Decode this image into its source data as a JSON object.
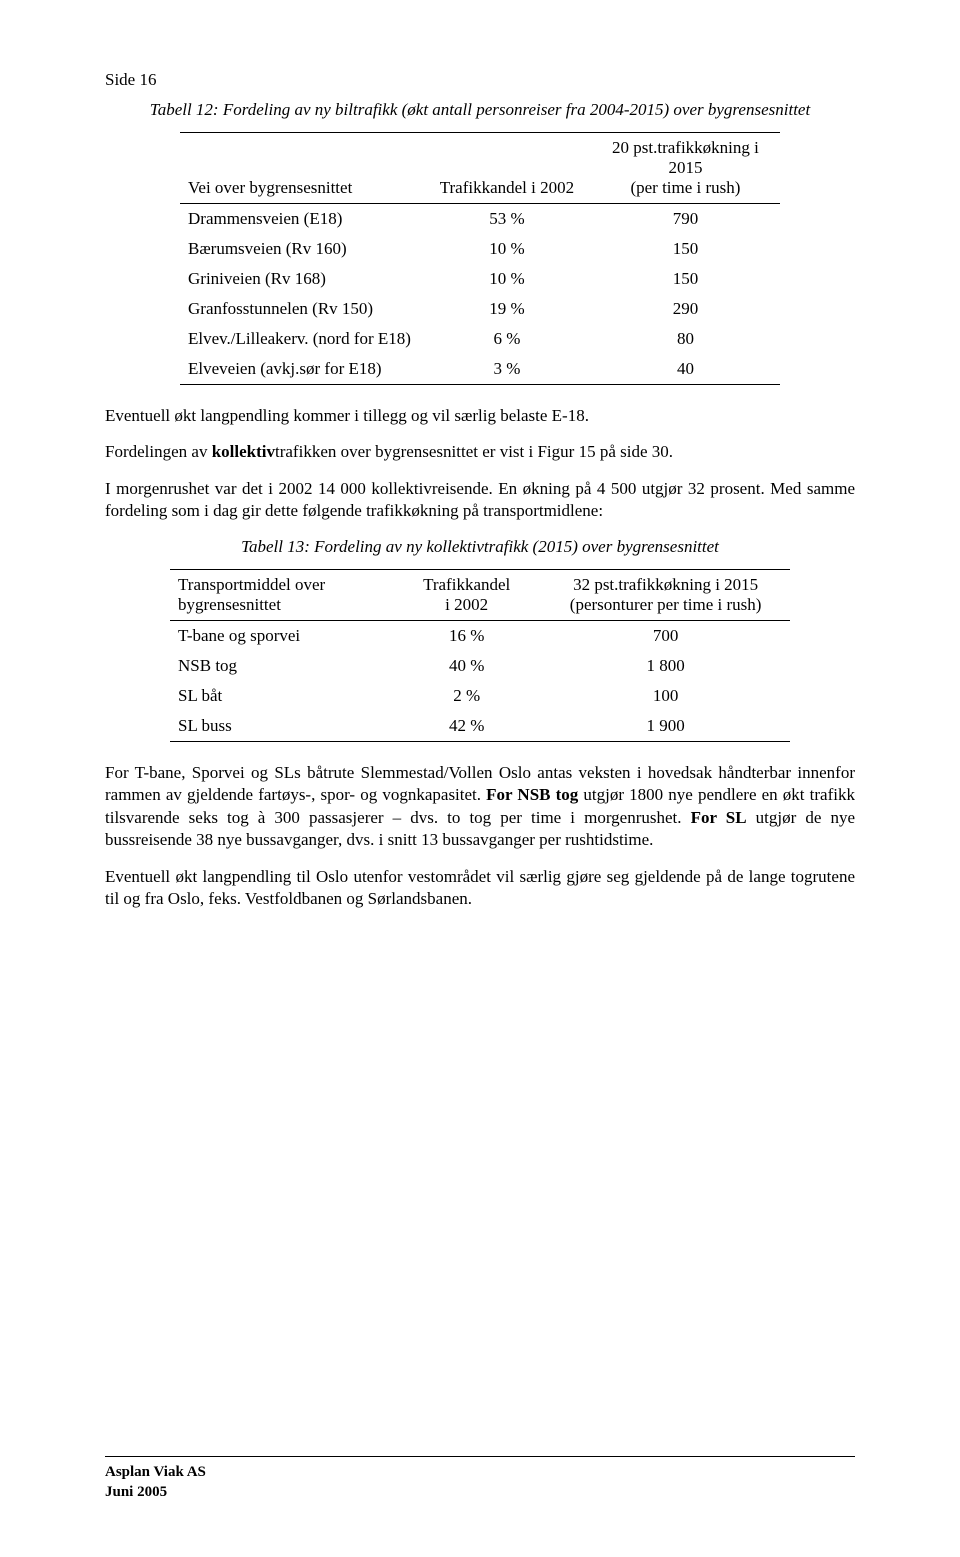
{
  "pageLabel": "Side 16",
  "table12": {
    "title": "Tabell 12: Fordeling av ny biltrafikk (økt antall personreiser fra 2004-2015) over bygrensesnittet",
    "headers": {
      "c1": "Vei over bygrensesnittet",
      "c2": "Trafikkandel i 2002",
      "c3top": "20 pst.trafikkøkning i 2015",
      "c3bot": "(per time i rush)"
    },
    "rows": [
      {
        "name": "Drammensveien (E18)",
        "share": "53 %",
        "val": "790"
      },
      {
        "name": "Bærumsveien (Rv 160)",
        "share": "10 %",
        "val": "150"
      },
      {
        "name": "Griniveien (Rv 168)",
        "share": "10 %",
        "val": "150"
      },
      {
        "name": "Granfosstunnelen (Rv 150)",
        "share": "19 %",
        "val": "290"
      },
      {
        "name": "Elvev./Lilleakerv. (nord for E18)",
        "share": "6 %",
        "val": "80"
      },
      {
        "name": "Elveveien (avkj.sør for E18)",
        "share": "3 %",
        "val": "40"
      }
    ]
  },
  "paragraphs": {
    "p1": "Eventuell økt langpendling kommer i tillegg og vil særlig belaste E-18.",
    "p2a": "Fordelingen av ",
    "p2b": "kollektiv",
    "p2c": "trafikken over bygrensesnittet er vist i Figur 15 på side 30.",
    "p3": "I morgenrushet var det i 2002 14 000 kollektivreisende.  En økning på 4 500 utgjør 32 prosent. Med samme fordeling som i dag gir dette følgende trafikkøkning på transportmidlene:"
  },
  "table13": {
    "title": "Tabell 13: Fordeling av ny kollektivtrafikk (2015) over bygrensesnittet",
    "headers": {
      "c1a": "Transportmiddel over",
      "c1b": "bygrensesnittet",
      "c2a": "Trafikkandel",
      "c2b": "i 2002",
      "c3a": "32 pst.trafikkøkning i 2015",
      "c3b": "(personturer per time i rush)"
    },
    "rows": [
      {
        "name": "T-bane og sporvei",
        "share": "16 %",
        "val": "700"
      },
      {
        "name": "NSB tog",
        "share": "40 %",
        "val": "1 800"
      },
      {
        "name": "SL båt",
        "share": "2 %",
        "val": "100"
      },
      {
        "name": "SL buss",
        "share": "42 %",
        "val": "1 900"
      }
    ]
  },
  "paragraphs2": {
    "p4a": "For T-bane, Sporvei og SLs båtrute Slemmestad/Vollen Oslo antas veksten i hovedsak håndterbar innenfor rammen av gjeldende fartøys-, spor- og vognkapasitet. ",
    "p4b": "For NSB tog",
    "p4c": " utgjør 1800 nye pendlere en økt trafikk tilsvarende seks tog à 300 passasjerer – dvs. to tog per time i morgenrushet. ",
    "p4d": "For SL",
    "p4e": " utgjør de nye bussreisende 38 nye bussavganger, dvs. i snitt 13 bussavganger per rushtidstime.",
    "p5": "Eventuell økt langpendling til Oslo utenfor vestområdet vil særlig gjøre seg gjeldende på de lange togrutene til og fra Oslo, feks. Vestfoldbanen og Sørlandsbanen."
  },
  "footer": {
    "l1": "Asplan Viak AS",
    "l2": "Juni 2005"
  }
}
